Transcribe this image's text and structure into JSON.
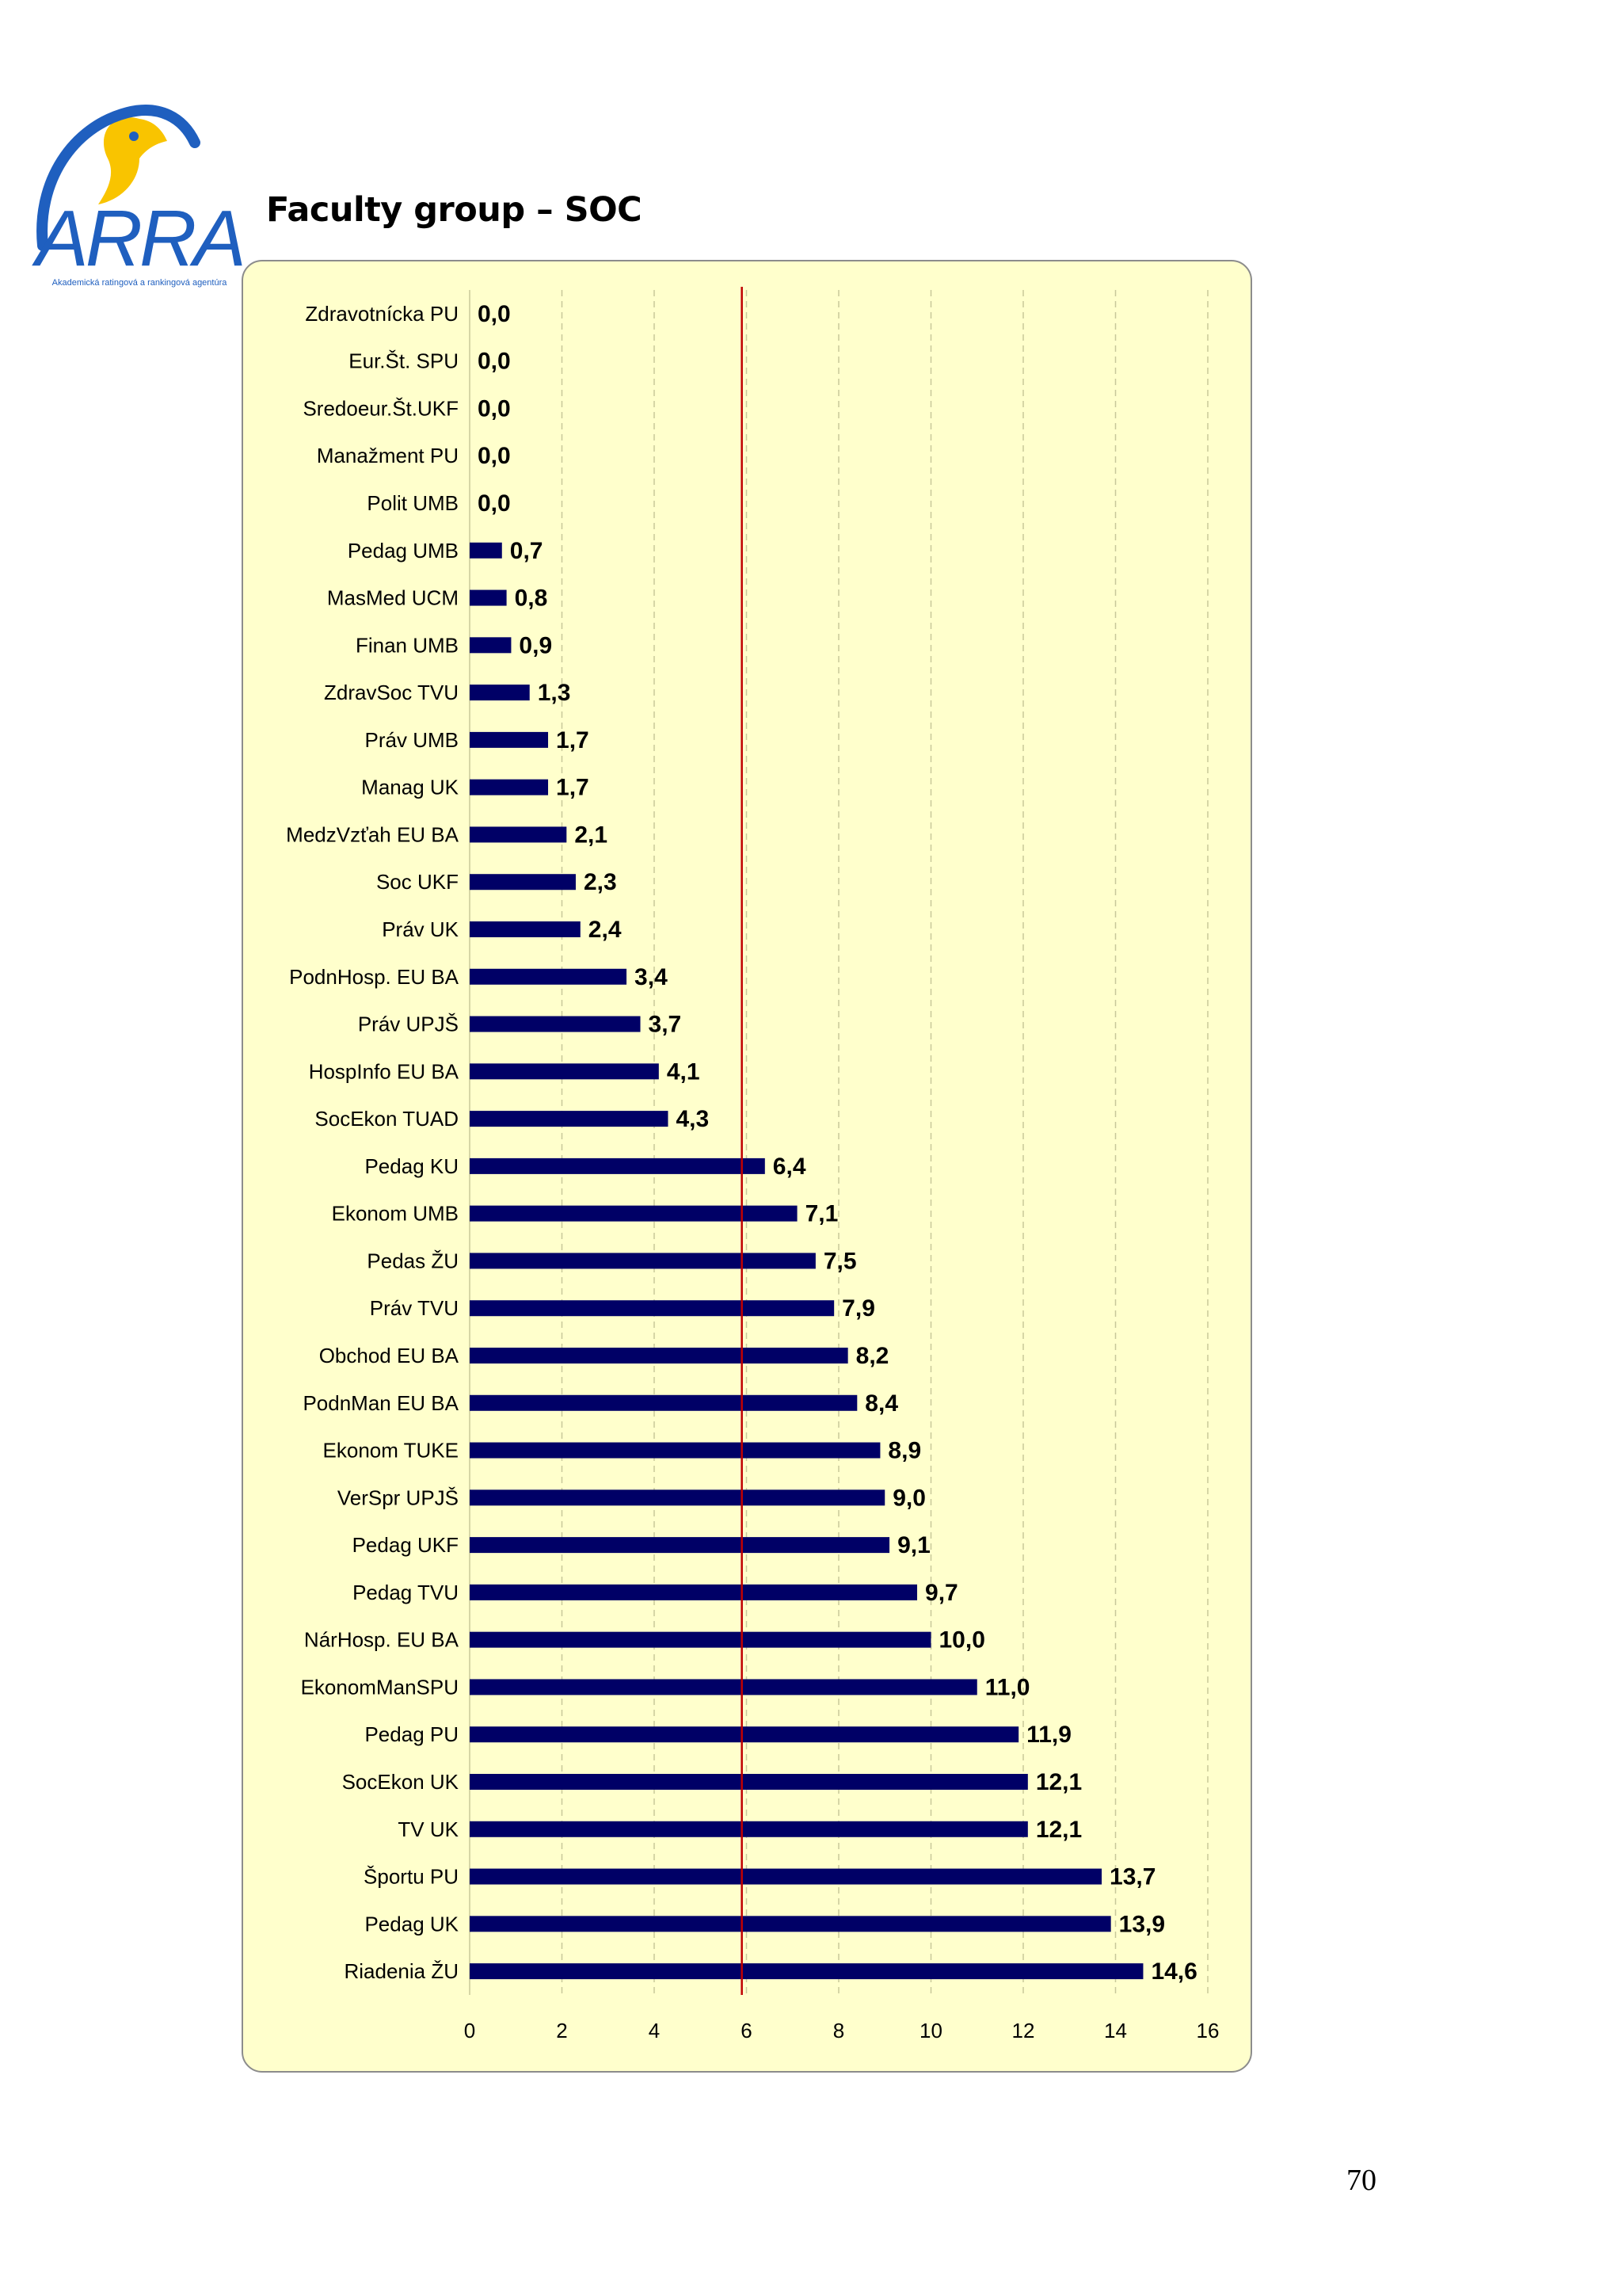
{
  "logo": {
    "wordmark": "ARRA",
    "tagline": "Akademická ratingová a rankingová agentúra",
    "colors": {
      "yellow": "#f9c400",
      "blue": "#1f5fbf"
    }
  },
  "heading": "Faculty group – SOC",
  "page_number": "70",
  "chart_data": {
    "type": "bar",
    "orientation": "horizontal",
    "title": "",
    "xlabel": "",
    "ylabel": "",
    "xlim": [
      0,
      16
    ],
    "xticks": [
      0,
      2,
      4,
      6,
      8,
      10,
      12,
      14,
      16
    ],
    "grid": "vertical dashed",
    "reference_line": {
      "value": 5.9,
      "color": "#c00000"
    },
    "bar_color": "#000066",
    "background": "#ffffcc",
    "categories": [
      "Zdravotnícka PU",
      "Eur.Št. SPU",
      "Sredoeur.Št.UKF",
      "Manažment PU",
      "Polit UMB",
      "Pedag UMB",
      "MasMed UCM",
      "Finan UMB",
      "ZdravSoc TVU",
      "Práv UMB",
      "Manag UK",
      "MedzVzťah EU BA",
      "Soc UKF",
      "Práv UK",
      "PodnHosp. EU BA",
      "Práv UPJŠ",
      "HospInfo EU BA",
      "SocEkon TUAD",
      "Pedag KU",
      "Ekonom UMB",
      "Pedas ŽU",
      "Práv TVU",
      "Obchod EU BA",
      "PodnMan EU BA",
      "Ekonom TUKE",
      "VerSpr UPJŠ",
      "Pedag UKF",
      "Pedag TVU",
      "NárHosp. EU BA",
      "EkonomManSPU",
      "Pedag PU",
      "SocEkon UK",
      "TV  UK",
      "Športu PU",
      "Pedag UK",
      "Riadenia  ŽU"
    ],
    "values": [
      0.0,
      0.0,
      0.0,
      0.0,
      0.0,
      0.7,
      0.8,
      0.9,
      1.3,
      1.7,
      1.7,
      2.1,
      2.3,
      2.4,
      3.4,
      3.7,
      4.1,
      4.3,
      6.4,
      7.1,
      7.5,
      7.9,
      8.2,
      8.4,
      8.9,
      9.0,
      9.1,
      9.7,
      10.0,
      11.0,
      11.9,
      12.1,
      12.1,
      13.7,
      13.9,
      14.6
    ],
    "value_labels": [
      "0,0",
      "0,0",
      "0,0",
      "0,0",
      "0,0",
      "0,7",
      "0,8",
      "0,9",
      "1,3",
      "1,7",
      "1,7",
      "2,1",
      "2,3",
      "2,4",
      "3,4",
      "3,7",
      "4,1",
      "4,3",
      "6,4",
      "7,1",
      "7,5",
      "7,9",
      "8,2",
      "8,4",
      "8,9",
      "9,0",
      "9,1",
      "9,7",
      "10,0",
      "11,0",
      "11,9",
      "12,1",
      "12,1",
      "13,7",
      "13,9",
      "14,6"
    ]
  }
}
